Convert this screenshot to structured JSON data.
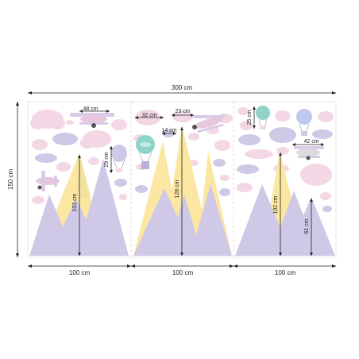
{
  "colors": {
    "lavender": "#cfc8e6",
    "lavender_dark": "#b9b0da",
    "pink": "#f4d7e4",
    "yellow": "#fbe7a1",
    "teal": "#8fd3c9",
    "blue_balloon": "#bfc9ef",
    "dim_line": "#222222",
    "border": "#dddddd"
  },
  "dims": {
    "total_width": "300 cm",
    "total_height": "150 cm",
    "panel_1_width": "100 cm",
    "panel_2_width": "100 cm",
    "panel_3_width": "100 cm",
    "plane_1_width": "48 cm",
    "balloon_1_height": "29 cm",
    "mountain_1_height": "103 cm",
    "cloud_1_width": "32 cm",
    "plane_2_width": "23 cm",
    "cloud_2_width": "14 cm",
    "mountain_2_height": "128 cm",
    "balloon_2_height": "25 cm",
    "plane_3_width": "42 cm",
    "mountain_3_height": "102 cm",
    "mountain_4_height": "61 cm"
  },
  "icons": [
    "airplane-icon",
    "hot-air-balloon-icon",
    "cloud-icon",
    "mountain-icon"
  ]
}
